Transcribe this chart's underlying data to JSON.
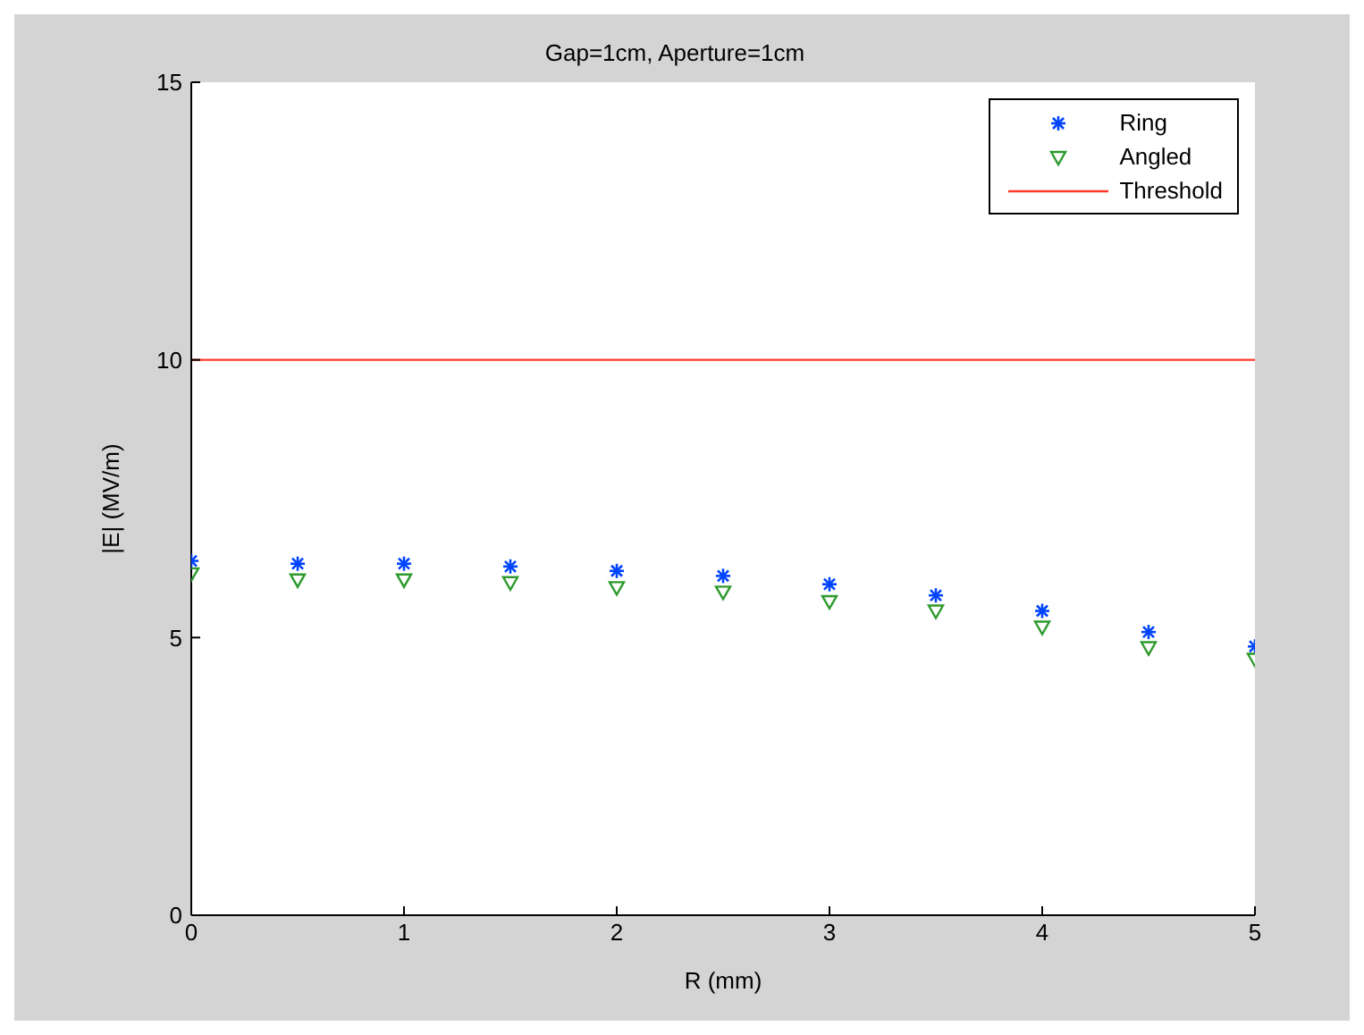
{
  "chart_data": {
    "type": "scatter",
    "title": "Gap=1cm, Aperture=1cm",
    "xlabel": "R (mm)",
    "ylabel": "|E| (MV/m)",
    "x": [
      0,
      0.5,
      1,
      1.5,
      2,
      2.5,
      3,
      3.5,
      4,
      4.5,
      5
    ],
    "series": [
      {
        "name": "Ring",
        "color": "#0044ff",
        "marker": "cross",
        "values": [
          6.38,
          6.33,
          6.33,
          6.28,
          6.2,
          6.11,
          5.96,
          5.76,
          5.48,
          5.1,
          4.84
        ]
      },
      {
        "name": "Angled",
        "color": "#2e9a2e",
        "marker": "triangle",
        "values": [
          6.15,
          6.04,
          6.04,
          5.99,
          5.9,
          5.82,
          5.65,
          5.48,
          5.19,
          4.82,
          4.61
        ]
      }
    ],
    "ref_lines": [
      {
        "axis": "y",
        "value": 10,
        "label": "Threshold",
        "color": "#ff3a2a"
      }
    ],
    "xlim": [
      0,
      5
    ],
    "xticks": [
      0,
      1,
      2,
      3,
      4,
      5
    ],
    "ylim": [
      0,
      15
    ],
    "yticks": [
      0,
      5,
      10,
      15
    ],
    "legend": "top right"
  }
}
